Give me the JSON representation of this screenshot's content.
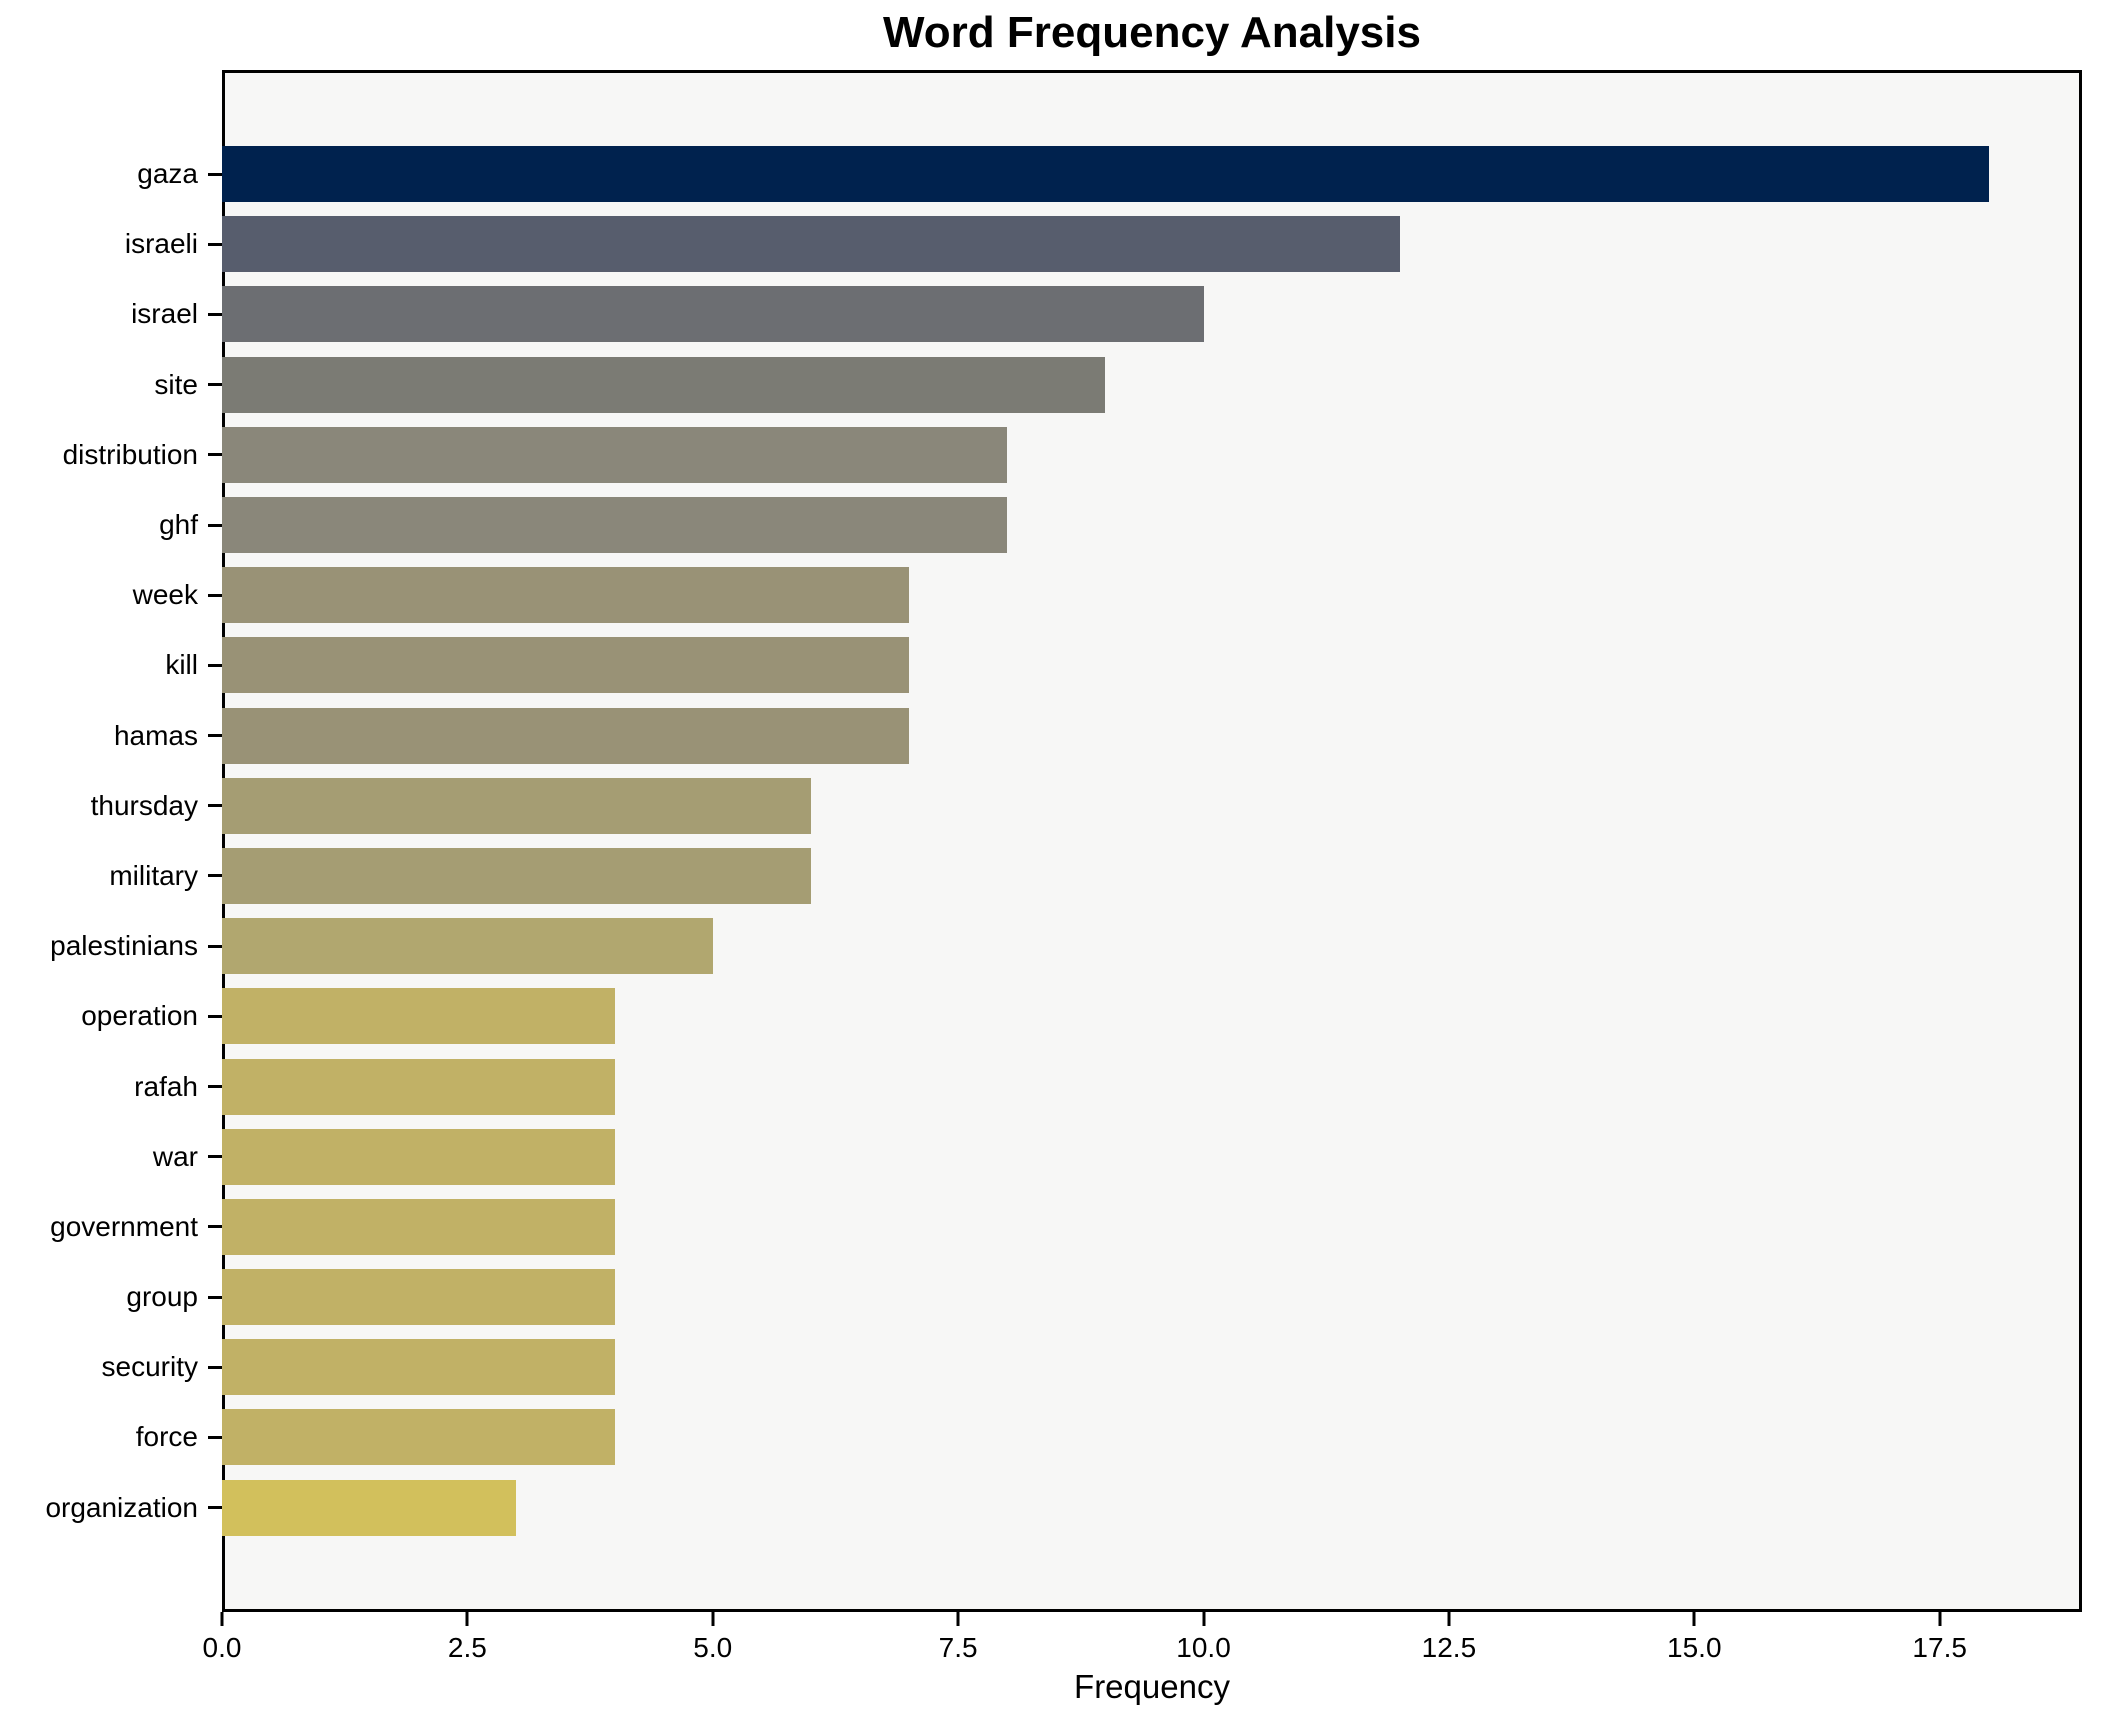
{
  "chart_data": {
    "type": "bar",
    "orientation": "horizontal",
    "title": "Word Frequency Analysis",
    "xlabel": "Frequency",
    "ylabel": "",
    "categories": [
      "gaza",
      "israeli",
      "israel",
      "site",
      "distribution",
      "ghf",
      "week",
      "kill",
      "hamas",
      "thursday",
      "military",
      "palestinians",
      "operation",
      "rafah",
      "war",
      "government",
      "group",
      "security",
      "force",
      "organization"
    ],
    "values": [
      18,
      12,
      10,
      9,
      8,
      8,
      7,
      7,
      7,
      6,
      6,
      5,
      4,
      4,
      4,
      4,
      4,
      4,
      4,
      3
    ],
    "bar_colors": [
      "#00224e",
      "#575d6d",
      "#6c6e72",
      "#7b7b74",
      "#8a877a",
      "#8a877a",
      "#999276",
      "#999276",
      "#999276",
      "#a59d73",
      "#a59d73",
      "#b1a76f",
      "#c1b166",
      "#c1b166",
      "#c1b166",
      "#c1b166",
      "#c1b166",
      "#c1b166",
      "#c1b166",
      "#d2c05c"
    ],
    "xlim": [
      0,
      18.95
    ],
    "xticks": [
      0,
      2.5,
      5,
      7.5,
      10,
      12.5,
      15,
      17.5
    ],
    "xtick_labels": [
      "0.0",
      "2.5",
      "5.0",
      "7.5",
      "10.0",
      "12.5",
      "15.0",
      "17.5"
    ],
    "grid": false,
    "legend": null,
    "plot_background": "#f7f7f6",
    "figure_background": "#ffffff",
    "spine_color": "#000000"
  }
}
